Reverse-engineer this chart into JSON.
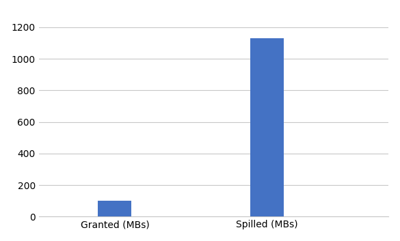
{
  "categories": [
    "Granted (MBs)",
    "Spilled (MBs)"
  ],
  "values": [
    100,
    1130
  ],
  "bar_color": "#4472C4",
  "bar_width": 0.22,
  "xlim": [
    -0.5,
    1.8
  ],
  "ylim": [
    0,
    1300
  ],
  "yticks": [
    0,
    200,
    400,
    600,
    800,
    1000,
    1200
  ],
  "background_color": "#ffffff",
  "grid_color": "#c8c8c8",
  "tick_label_fontsize": 10,
  "xlabel_fontsize": 10,
  "figsize": [
    5.85,
    3.53
  ],
  "dpi": 100
}
